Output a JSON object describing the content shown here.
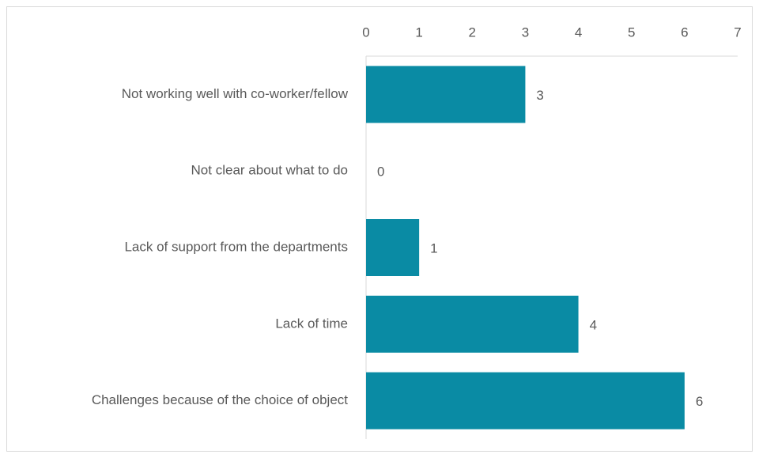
{
  "chart_data": {
    "type": "bar",
    "orientation": "horizontal",
    "categories": [
      "Not working well with co-worker/fellow",
      "Not clear about what to do",
      "Lack of support from the departments",
      "Lack of time",
      "Challenges because of the choice of object"
    ],
    "values": [
      3,
      0,
      1,
      4,
      6
    ],
    "color": "#0a8ba4",
    "xlim": [
      0,
      7
    ],
    "xticks": [
      0,
      1,
      2,
      3,
      4,
      5,
      6,
      7
    ],
    "grid": false
  }
}
